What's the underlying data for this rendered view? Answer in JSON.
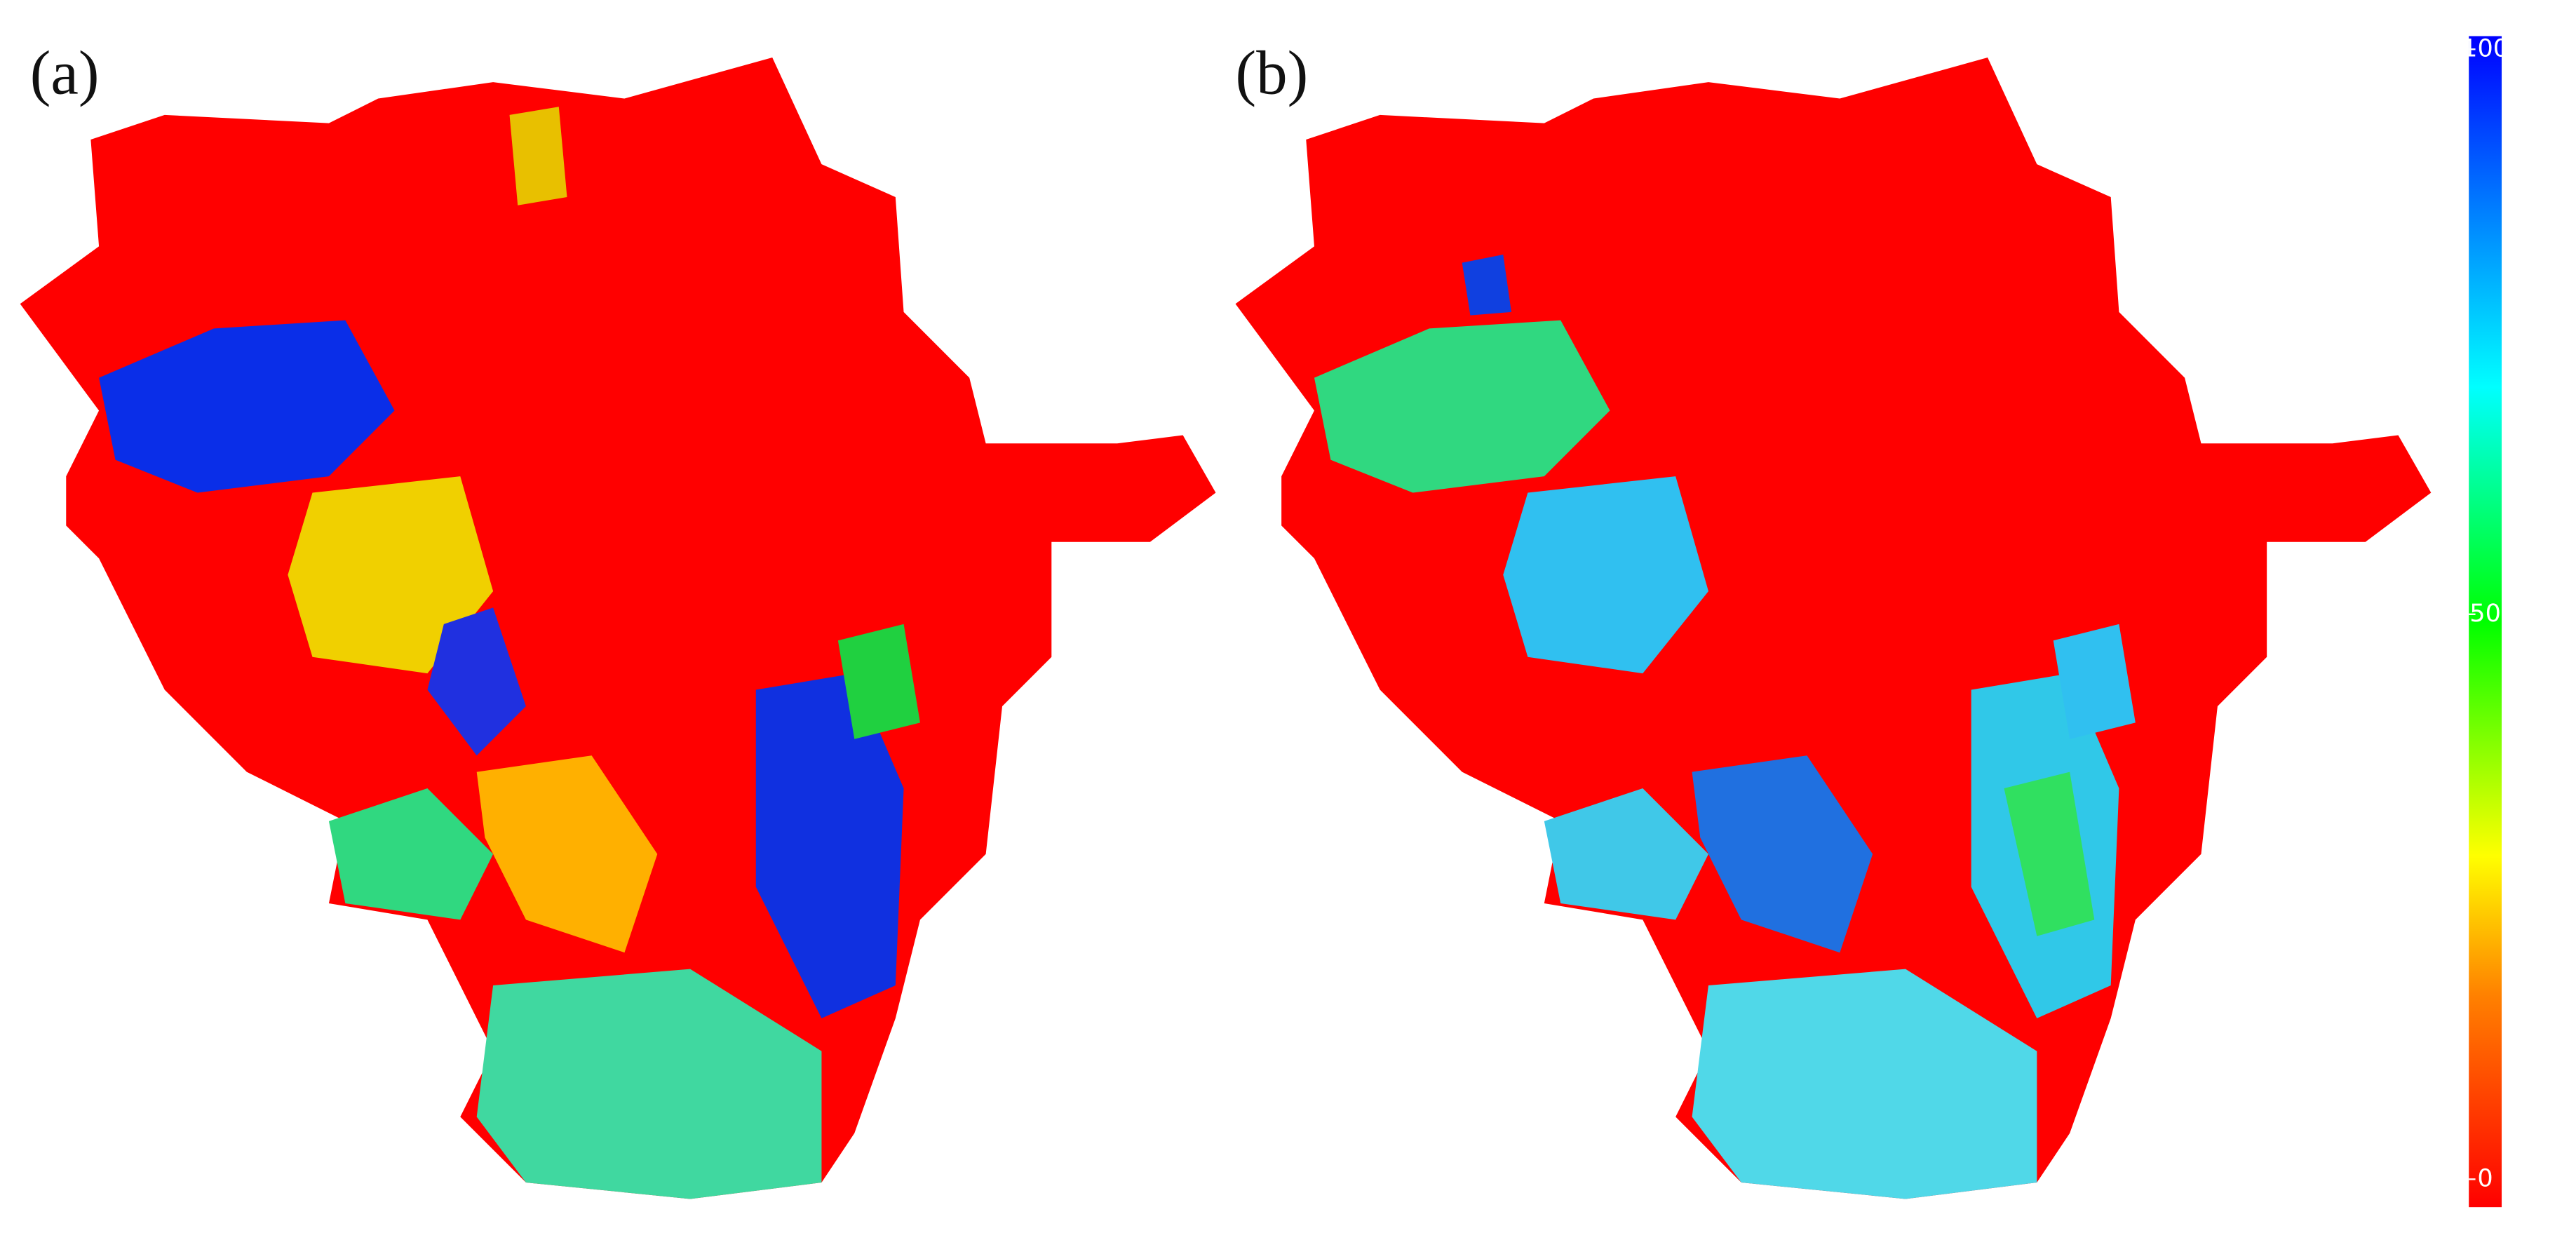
{
  "panels": [
    {
      "label": "(a)"
    },
    {
      "label": "(b)"
    }
  ],
  "colorbar": {
    "lim": [
      0,
      100
    ],
    "ticks": [
      0,
      50,
      100
    ]
  }
}
